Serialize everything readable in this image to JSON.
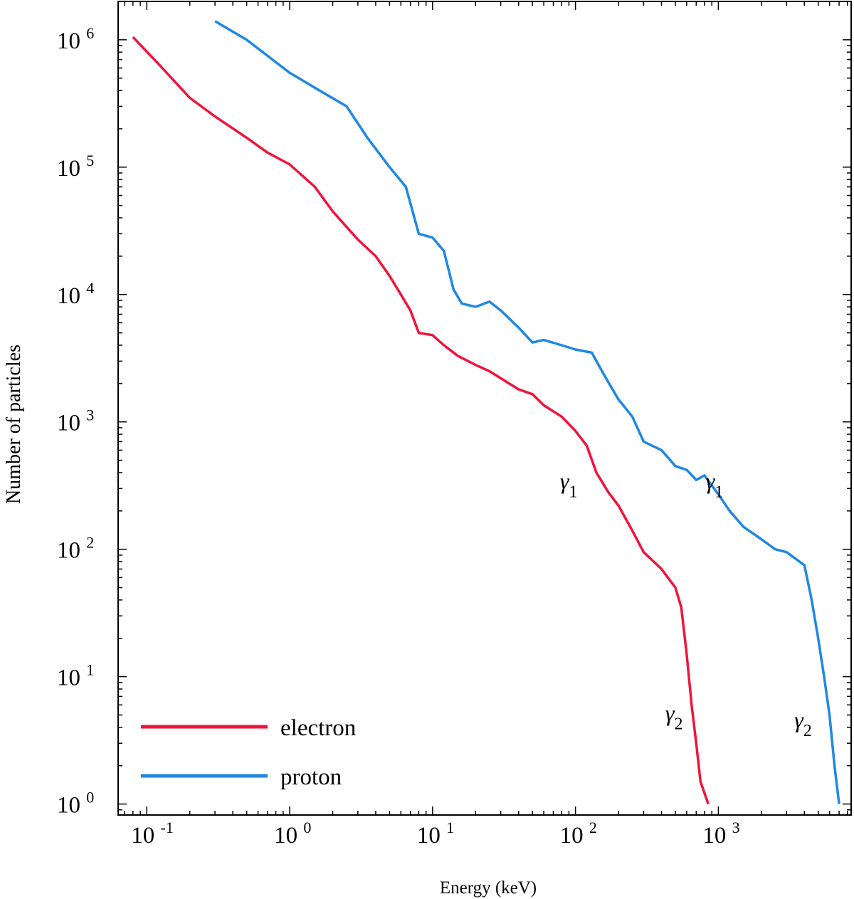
{
  "chart_data": {
    "type": "line",
    "title": "",
    "xlabel": "Energy (keV)",
    "ylabel": "Number of particles",
    "xscale": "log",
    "yscale": "log",
    "xlim": [
      0.063,
      8500
    ],
    "ylim": [
      0.82,
      2000000
    ],
    "x_ticks": [
      {
        "base": "10",
        "exp": "-1",
        "value": 0.1
      },
      {
        "base": "10",
        "exp": "0",
        "value": 1
      },
      {
        "base": "10",
        "exp": "1",
        "value": 10
      },
      {
        "base": "10",
        "exp": "2",
        "value": 100
      },
      {
        "base": "10",
        "exp": "3",
        "value": 1000
      }
    ],
    "y_ticks": [
      {
        "base": "10",
        "exp": "0",
        "value": 1
      },
      {
        "base": "10",
        "exp": "1",
        "value": 10
      },
      {
        "base": "10",
        "exp": "2",
        "value": 100
      },
      {
        "base": "10",
        "exp": "3",
        "value": 1000
      },
      {
        "base": "10",
        "exp": "4",
        "value": 10000
      },
      {
        "base": "10",
        "exp": "5",
        "value": 100000
      },
      {
        "base": "10",
        "exp": "6",
        "value": 1000000
      }
    ],
    "legend_position": "bottom-left",
    "series": [
      {
        "name": "electron",
        "color": "#f0143c",
        "points": [
          [
            0.08,
            1050000
          ],
          [
            0.12,
            650000
          ],
          [
            0.2,
            350000
          ],
          [
            0.3,
            250000
          ],
          [
            0.5,
            170000
          ],
          [
            0.7,
            130000
          ],
          [
            1.0,
            105000
          ],
          [
            1.5,
            70000
          ],
          [
            2.0,
            45000
          ],
          [
            3.0,
            27000
          ],
          [
            4.0,
            20000
          ],
          [
            5.0,
            14000
          ],
          [
            6.0,
            10000
          ],
          [
            7.0,
            7500
          ],
          [
            8.0,
            5000
          ],
          [
            10.0,
            4800
          ],
          [
            12.0,
            4000
          ],
          [
            15.0,
            3300
          ],
          [
            20.0,
            2800
          ],
          [
            25.0,
            2500
          ],
          [
            30.0,
            2200
          ],
          [
            40.0,
            1800
          ],
          [
            50.0,
            1650
          ],
          [
            60.0,
            1350
          ],
          [
            80.0,
            1100
          ],
          [
            100.0,
            850
          ],
          [
            120.0,
            650
          ],
          [
            140.0,
            400
          ],
          [
            170.0,
            280
          ],
          [
            200.0,
            220
          ],
          [
            250.0,
            140
          ],
          [
            300.0,
            95
          ],
          [
            400.0,
            70
          ],
          [
            500.0,
            50
          ],
          [
            550.0,
            35
          ],
          [
            600.0,
            15
          ],
          [
            650.0,
            6
          ],
          [
            700.0,
            3
          ],
          [
            750.0,
            1.5
          ],
          [
            850.0,
            1.0
          ]
        ]
      },
      {
        "name": "proton",
        "color": "#1e88e5",
        "points": [
          [
            0.3,
            1400000
          ],
          [
            0.5,
            1000000
          ],
          [
            1.0,
            550000
          ],
          [
            1.5,
            420000
          ],
          [
            2.5,
            300000
          ],
          [
            3.5,
            170000
          ],
          [
            5.0,
            100000
          ],
          [
            6.5,
            70000
          ],
          [
            8.0,
            30000
          ],
          [
            10.0,
            28000
          ],
          [
            12.0,
            22000
          ],
          [
            14.0,
            11000
          ],
          [
            16.0,
            8500
          ],
          [
            20.0,
            8000
          ],
          [
            25.0,
            8800
          ],
          [
            30.0,
            7500
          ],
          [
            40.0,
            5500
          ],
          [
            50.0,
            4200
          ],
          [
            60.0,
            4400
          ],
          [
            80.0,
            4000
          ],
          [
            100.0,
            3700
          ],
          [
            130.0,
            3500
          ],
          [
            160.0,
            2300
          ],
          [
            200.0,
            1500
          ],
          [
            250.0,
            1100
          ],
          [
            300.0,
            700
          ],
          [
            400.0,
            600
          ],
          [
            500.0,
            450
          ],
          [
            600.0,
            420
          ],
          [
            700.0,
            350
          ],
          [
            800.0,
            380
          ],
          [
            1000.0,
            270
          ],
          [
            1200.0,
            200
          ],
          [
            1500.0,
            150
          ],
          [
            2000.0,
            120
          ],
          [
            2500.0,
            100
          ],
          [
            3000.0,
            95
          ],
          [
            4000.0,
            75
          ],
          [
            4500.0,
            40
          ],
          [
            5000.0,
            20
          ],
          [
            5500.0,
            10
          ],
          [
            6000.0,
            5
          ],
          [
            6500.0,
            2
          ],
          [
            7000.0,
            1.0
          ]
        ]
      }
    ],
    "annotations": [
      {
        "symbol": "γ",
        "sub": "1",
        "x": 110,
        "y": 300,
        "series": "electron"
      },
      {
        "symbol": "γ",
        "sub": "2",
        "x": 600,
        "y": 4.5,
        "series": "electron"
      },
      {
        "symbol": "γ",
        "sub": "1",
        "x": 1150,
        "y": 300,
        "series": "proton"
      },
      {
        "symbol": "γ",
        "sub": "2",
        "x": 4800,
        "y": 4.0,
        "series": "proton"
      }
    ]
  }
}
